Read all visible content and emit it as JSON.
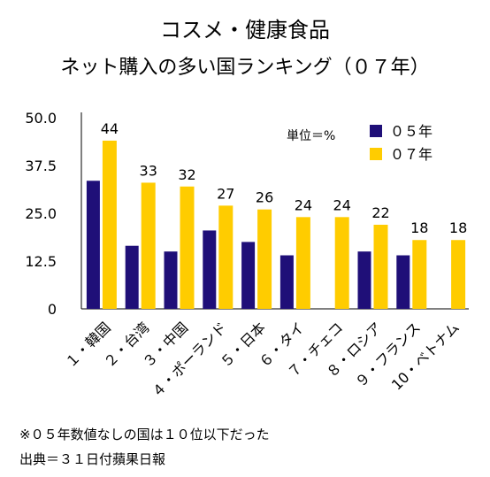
{
  "header": {
    "title": "コスメ・健康食品",
    "subtitle": "ネット購入の多い国ランキング（０７年）"
  },
  "notes": {
    "line1": "※０５年数値なしの国は１０位以下だった",
    "line2": "出典＝３１日付蘋果日報"
  },
  "chart_data": {
    "type": "bar",
    "unit_label": "単位＝%",
    "categories": [
      "１・韓国",
      "２・台湾",
      "３・中国",
      "４・ポーランド",
      "５・日本",
      "６・タイ",
      "７・チェコ",
      "８・ロシア",
      "９・フランス",
      "10・ベトナム"
    ],
    "series": [
      {
        "name": "０５年",
        "color": "#1f0f78",
        "values": [
          33.5,
          16.5,
          15,
          20.5,
          17.5,
          14,
          null,
          15,
          14,
          null
        ]
      },
      {
        "name": "０７年",
        "color": "#ffcc00",
        "values": [
          44,
          33,
          32,
          27,
          26,
          24,
          24,
          22,
          18,
          18
        ]
      }
    ],
    "data_labels": [
      "44",
      "33",
      "32",
      "27",
      "26",
      "24",
      "24",
      "22",
      "18",
      "18"
    ],
    "yticks": [
      "50.0",
      "37.5",
      "25.0",
      "12.5",
      "0"
    ],
    "ylim": [
      0,
      50
    ],
    "legend_position": "top-right"
  }
}
